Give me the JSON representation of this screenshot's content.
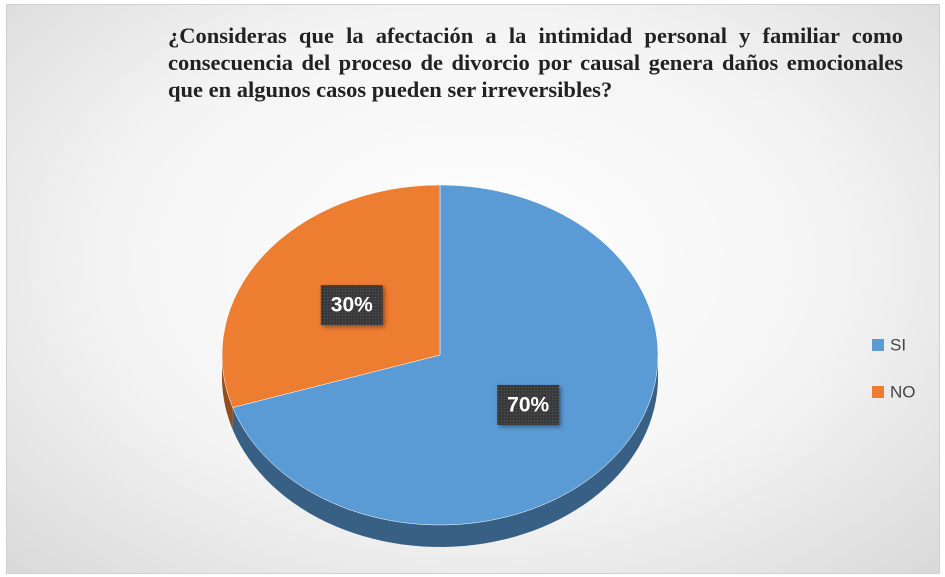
{
  "chart_data": {
    "type": "pie",
    "title": "¿Consideras que la afectación a la intimidad personal y familiar como consecuencia del proceso de divorcio por causal genera daños emocionales que en algunos casos pueden ser irreversibles?",
    "categories": [
      "SI",
      "NO"
    ],
    "values": [
      70,
      30
    ],
    "value_labels": [
      "70%",
      "30%"
    ],
    "colors": [
      "#5b9bd5",
      "#ed7d31"
    ],
    "legend": "right"
  }
}
